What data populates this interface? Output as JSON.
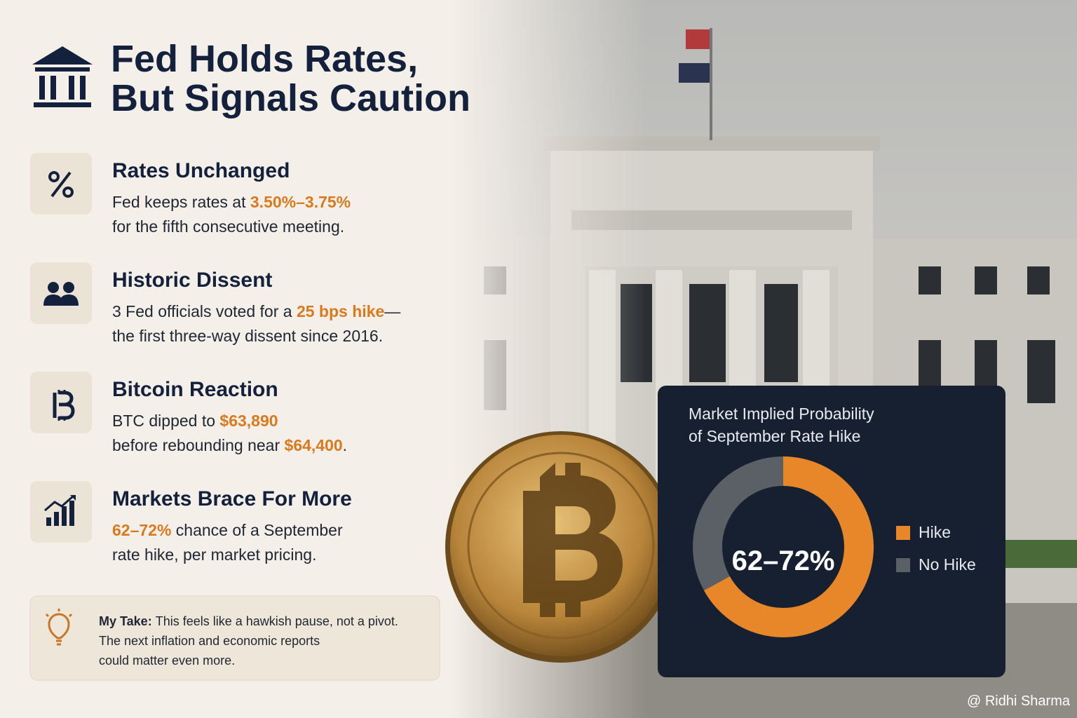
{
  "header": {
    "title_lines": [
      "Fed Holds Rates,",
      "But Signals Caution"
    ]
  },
  "items": [
    {
      "heading": "Rates Unchanged",
      "lines": [
        [
          {
            "text": "Fed keeps rates at "
          },
          {
            "text": "3.50%–3.75%",
            "accent": true
          }
        ],
        [
          {
            "text": "for the fifth consecutive meeting."
          }
        ]
      ]
    },
    {
      "heading": "Historic Dissent",
      "lines": [
        [
          {
            "text": "3 Fed officials voted for a "
          },
          {
            "text": "25 bps hike",
            "accent": true
          },
          {
            "text": "—"
          }
        ],
        [
          {
            "text": "the first three-way dissent since 2016."
          }
        ]
      ]
    },
    {
      "heading": "Bitcoin Reaction",
      "lines": [
        [
          {
            "text": "BTC dipped to "
          },
          {
            "text": "$63,890",
            "accent": true
          }
        ],
        [
          {
            "text": "before rebounding near "
          },
          {
            "text": "$64,400",
            "accent": true
          },
          {
            "text": "."
          }
        ]
      ]
    },
    {
      "heading": "Markets Brace For More",
      "lines": [
        [
          {
            "text": "62–72%",
            "accent": true
          },
          {
            "text": " chance of a September"
          }
        ],
        [
          {
            "text": "rate hike, per market pricing."
          }
        ]
      ]
    }
  ],
  "take": {
    "label": "My Take:",
    "lines": [
      "This feels like a hawkish pause, not a pivot.",
      "The next inflation and economic reports",
      "could matter even more."
    ]
  },
  "chart_data": {
    "type": "donut",
    "title_lines": [
      "Market Implied Probability",
      "of September Rate Hike"
    ],
    "center_label": "62–72%",
    "categories": [
      "Hike",
      "No Hike"
    ],
    "values": [
      67,
      33
    ],
    "colors": [
      "#e8862a",
      "#5b5f66"
    ]
  },
  "watermark": "@ Ridhi Sharma"
}
